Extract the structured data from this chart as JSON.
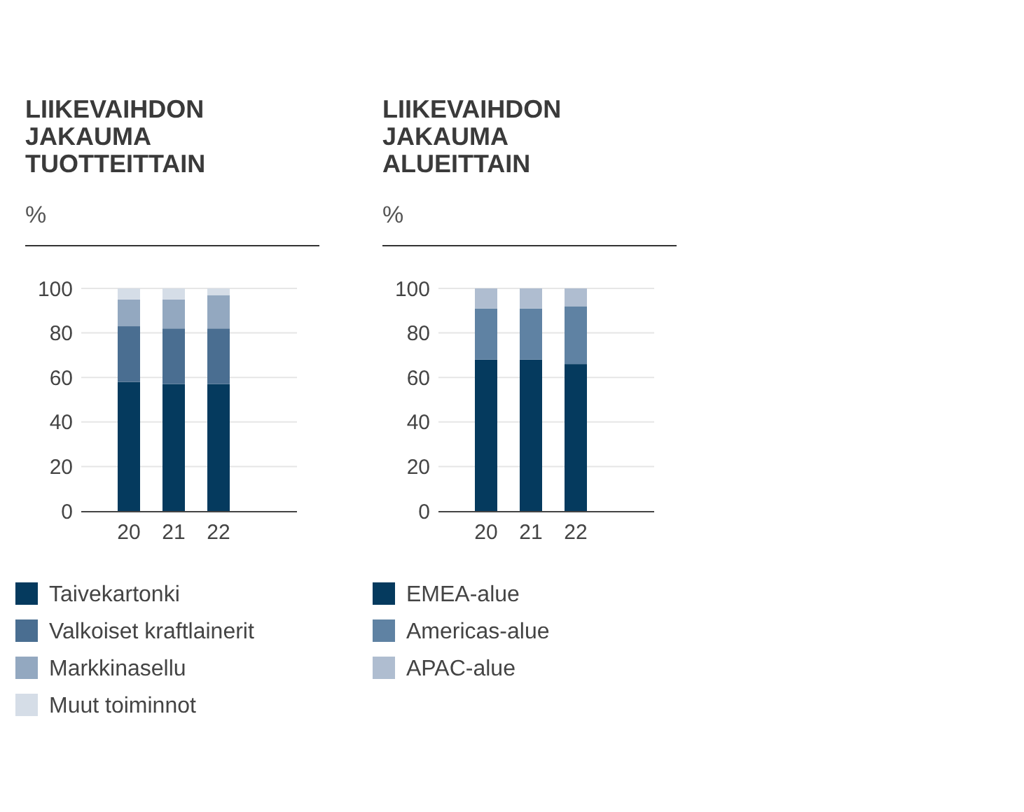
{
  "chart_data": [
    {
      "type": "bar",
      "stacked": true,
      "title": "LIIKEVAIHDON JAKAUMA TUOTTEITTAIN",
      "ylabel": "%",
      "categories": [
        "20",
        "21",
        "22"
      ],
      "ylim": [
        0,
        100
      ],
      "yticks": [
        0,
        20,
        40,
        60,
        80,
        100
      ],
      "grid": "y",
      "legend": "bottom",
      "series": [
        {
          "name": "Taivekartonki",
          "color": "#053a5e",
          "values": [
            58,
            57,
            57
          ]
        },
        {
          "name": "Valkoiset kraftlainerit",
          "color": "#4a6e91",
          "values": [
            25,
            25,
            25
          ]
        },
        {
          "name": "Markkinasellu",
          "color": "#93a8c0",
          "values": [
            12,
            13,
            15
          ]
        },
        {
          "name": "Muut toiminnot",
          "color": "#d5dde7",
          "values": [
            5,
            5,
            3
          ]
        }
      ]
    },
    {
      "type": "bar",
      "stacked": true,
      "title": "LIIKEVAIHDON JAKAUMA ALUEITTAIN",
      "ylabel": "%",
      "categories": [
        "20",
        "21",
        "22"
      ],
      "ylim": [
        0,
        100
      ],
      "yticks": [
        0,
        20,
        40,
        60,
        80,
        100
      ],
      "grid": "y",
      "legend": "bottom",
      "series": [
        {
          "name": "EMEA-alue",
          "color": "#053a5e",
          "values": [
            68,
            68,
            66
          ]
        },
        {
          "name": "Americas-alue",
          "color": "#5f82a3",
          "values": [
            23,
            23,
            26
          ]
        },
        {
          "name": "APAC-alue",
          "color": "#afbdd0",
          "values": [
            9,
            9,
            8
          ]
        }
      ]
    }
  ]
}
